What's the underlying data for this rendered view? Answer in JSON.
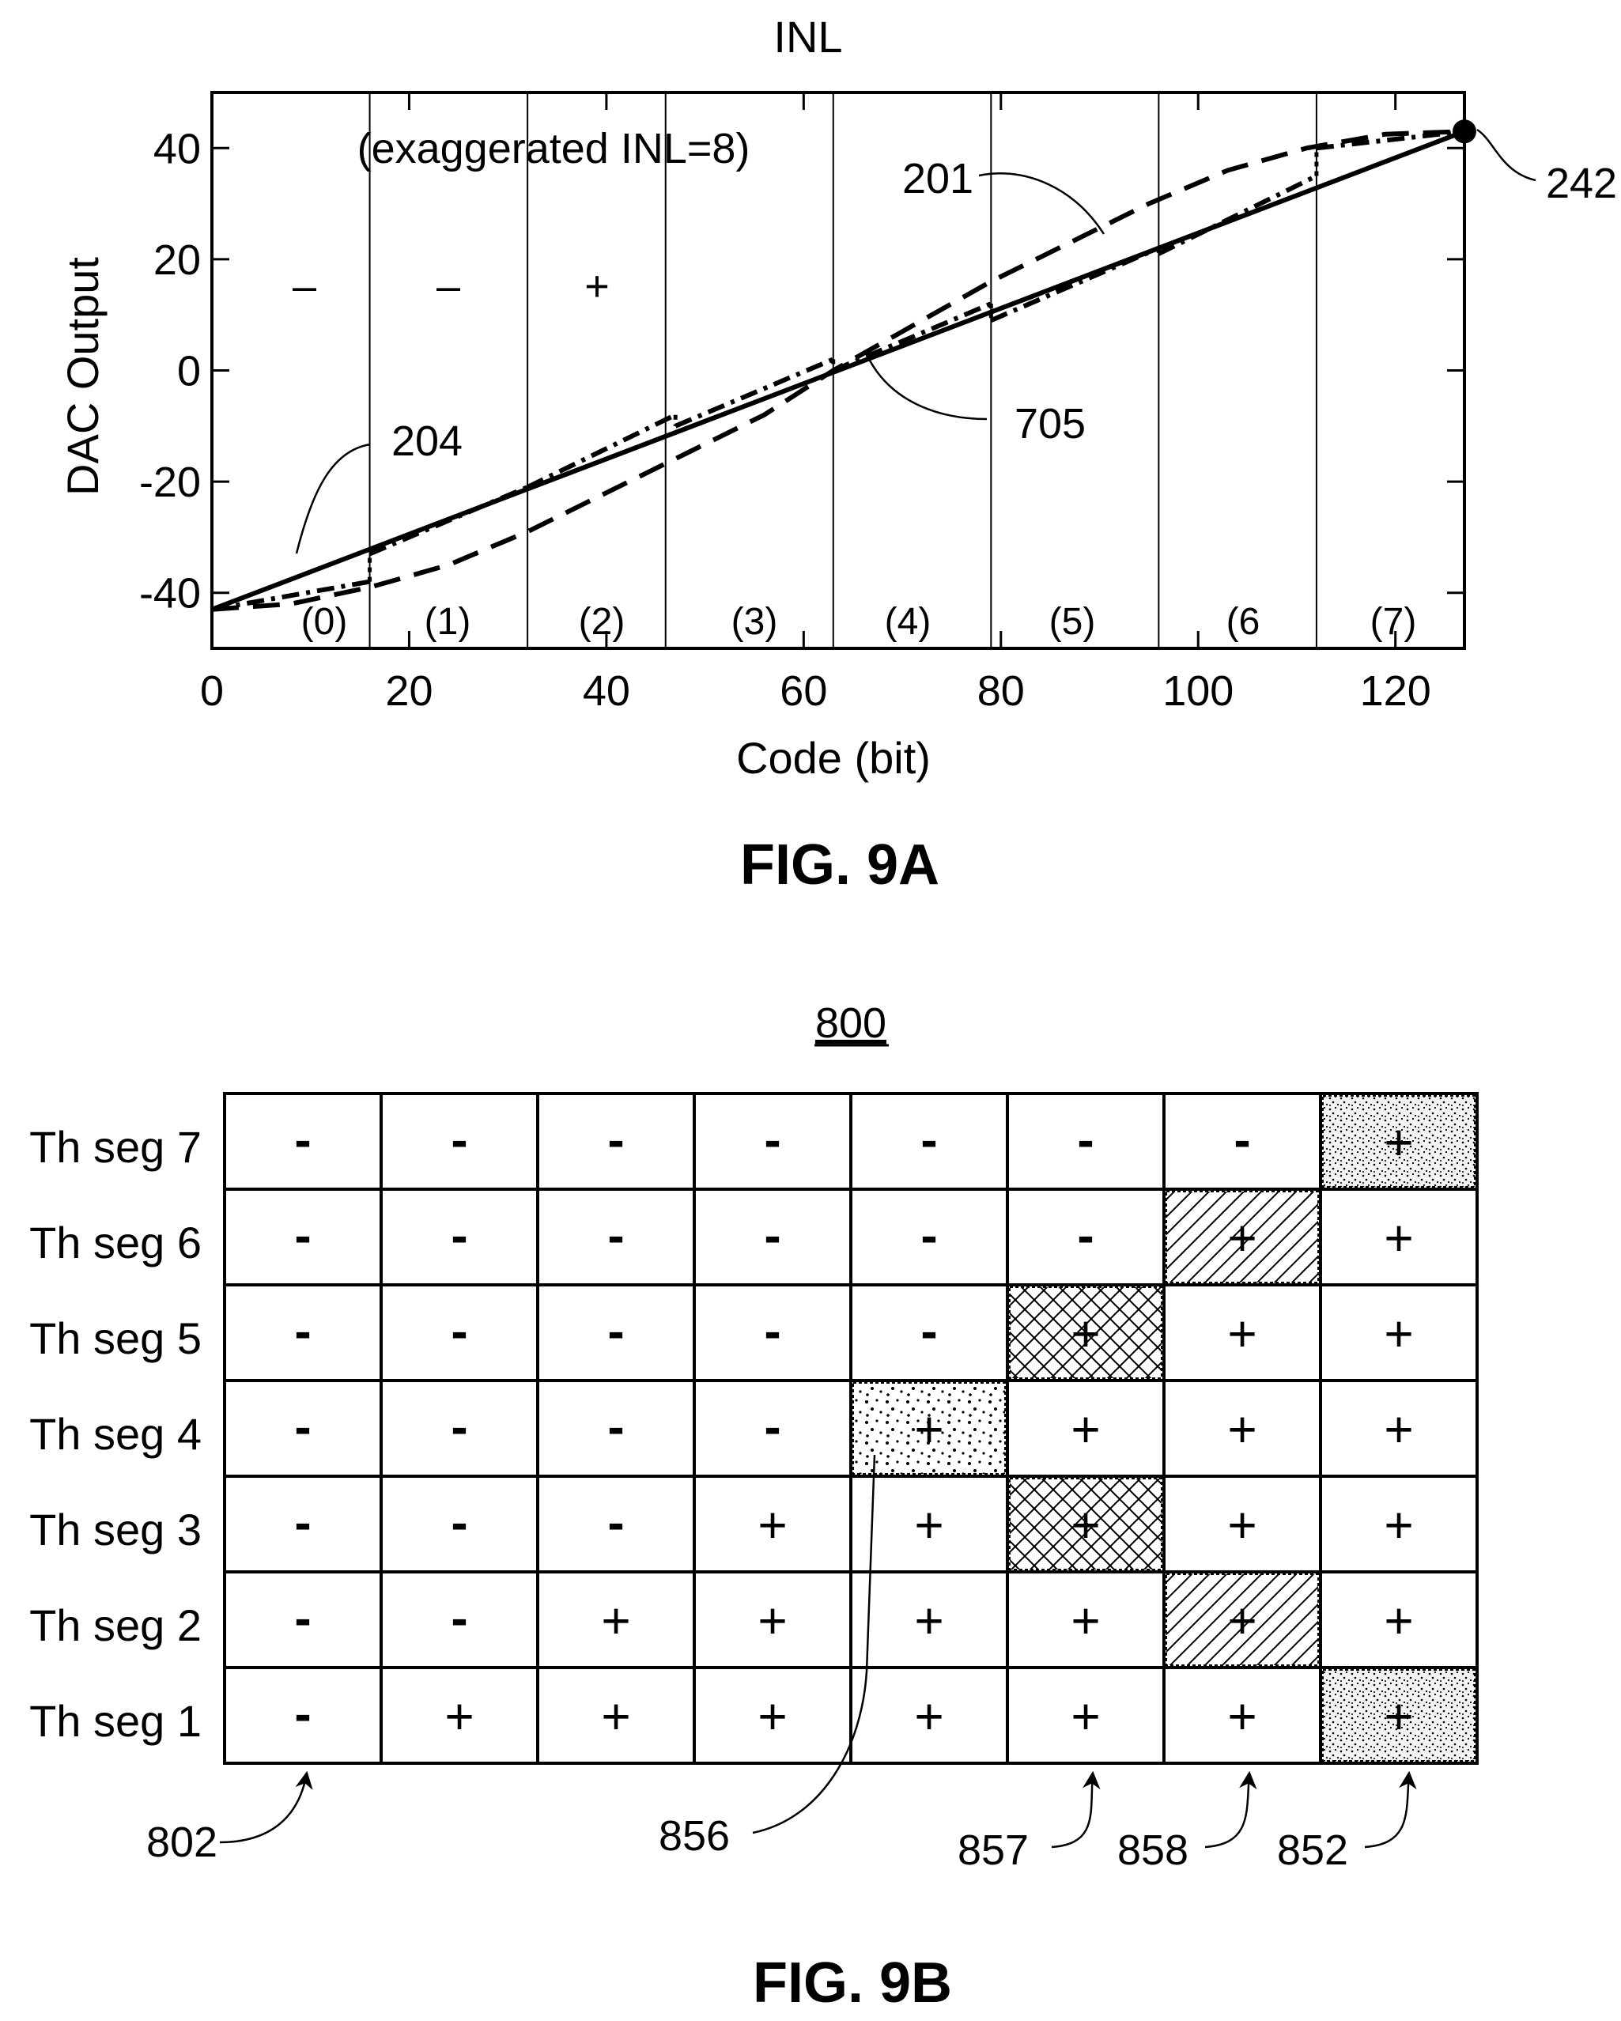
{
  "figure_a": {
    "title": "INL",
    "caption": "FIG. 9A",
    "annotation": "(exaggerated INL=8)",
    "region_signs": [
      "–",
      "–",
      "+"
    ],
    "segment_labels": [
      "(0)",
      "(1)",
      "(2)",
      "(3)",
      "(4)",
      "(5)",
      "(6",
      "(7)"
    ],
    "ref_labels": {
      "r201": "201",
      "r204": "204",
      "r242": "242",
      "r705": "705"
    },
    "chart_data": {
      "type": "line",
      "xlabel": "Code (bit)",
      "ylabel": "DAC Output",
      "xlim": [
        0,
        127
      ],
      "ylim": [
        -50,
        50
      ],
      "x_ticks": [
        0,
        20,
        40,
        60,
        80,
        100,
        120
      ],
      "y_ticks": [
        40,
        20,
        0,
        -20,
        -40
      ],
      "segment_boundaries": [
        16,
        32,
        46,
        63,
        79,
        96,
        112
      ],
      "grid": false,
      "series": [
        {
          "style": "solid",
          "points": [
            [
              0,
              -43
            ],
            [
              127,
              43
            ]
          ]
        },
        {
          "style": "dashed",
          "points": [
            [
              0,
              -43
            ],
            [
              8,
              -42
            ],
            [
              16,
              -39
            ],
            [
              24,
              -35
            ],
            [
              32,
              -29
            ],
            [
              40,
              -22
            ],
            [
              48,
              -15
            ],
            [
              56,
              -8
            ],
            [
              63,
              0
            ],
            [
              71,
              8
            ],
            [
              79,
              16
            ],
            [
              87,
              23
            ],
            [
              95,
              30
            ],
            [
              103,
              36
            ],
            [
              111,
              40
            ],
            [
              119,
              42.5
            ],
            [
              127,
              43
            ]
          ]
        },
        {
          "style": "dash-dot",
          "segments": [
            [
              [
                0,
                -43
              ],
              [
                16,
                -38
              ]
            ],
            [
              [
                16,
                -33
              ],
              [
                32,
                -21
              ]
            ],
            [
              [
                32,
                -21
              ],
              [
                47,
                -8
              ]
            ],
            [
              [
                47,
                -10
              ],
              [
                63,
                2
              ]
            ],
            [
              [
                63,
                0
              ],
              [
                79,
                12
              ]
            ],
            [
              [
                79,
                9
              ],
              [
                96,
                22
              ]
            ],
            [
              [
                96,
                21
              ],
              [
                112,
                35
              ]
            ],
            [
              [
                112,
                40
              ],
              [
                127,
                43
              ]
            ]
          ]
        }
      ],
      "endpoint": [
        127,
        43
      ]
    }
  },
  "figure_b": {
    "ref_top": "800",
    "caption": "FIG. 9B",
    "row_labels": [
      "Th seg 7",
      "Th seg 6",
      "Th seg 5",
      "Th seg 4",
      "Th seg 3",
      "Th seg 2",
      "Th seg 1"
    ],
    "cells": [
      [
        "-",
        "-",
        "-",
        "-",
        "-",
        "-",
        "-",
        "+"
      ],
      [
        "-",
        "-",
        "-",
        "-",
        "-",
        "-",
        "+",
        "+"
      ],
      [
        "-",
        "-",
        "-",
        "-",
        "-",
        "+",
        "+",
        "+"
      ],
      [
        "-",
        "-",
        "-",
        "-",
        "+",
        "+",
        "+",
        "+"
      ],
      [
        "-",
        "-",
        "-",
        "+",
        "+",
        "+",
        "+",
        "+"
      ],
      [
        "-",
        "-",
        "+",
        "+",
        "+",
        "+",
        "+",
        "+"
      ],
      [
        "-",
        "+",
        "+",
        "+",
        "+",
        "+",
        "+",
        "+"
      ]
    ],
    "highlighted_cells": [
      {
        "row": 0,
        "col": 7,
        "pattern": "stipple-dense"
      },
      {
        "row": 1,
        "col": 6,
        "pattern": "diagonal"
      },
      {
        "row": 2,
        "col": 5,
        "pattern": "crosshatch"
      },
      {
        "row": 3,
        "col": 4,
        "pattern": "stipple-sparse"
      },
      {
        "row": 4,
        "col": 5,
        "pattern": "crosshatch"
      },
      {
        "row": 5,
        "col": 6,
        "pattern": "diagonal"
      },
      {
        "row": 6,
        "col": 7,
        "pattern": "stipple-dense"
      }
    ],
    "ref_labels": {
      "r802": "802",
      "r856": "856",
      "r857": "857",
      "r858": "858",
      "r852": "852"
    }
  }
}
